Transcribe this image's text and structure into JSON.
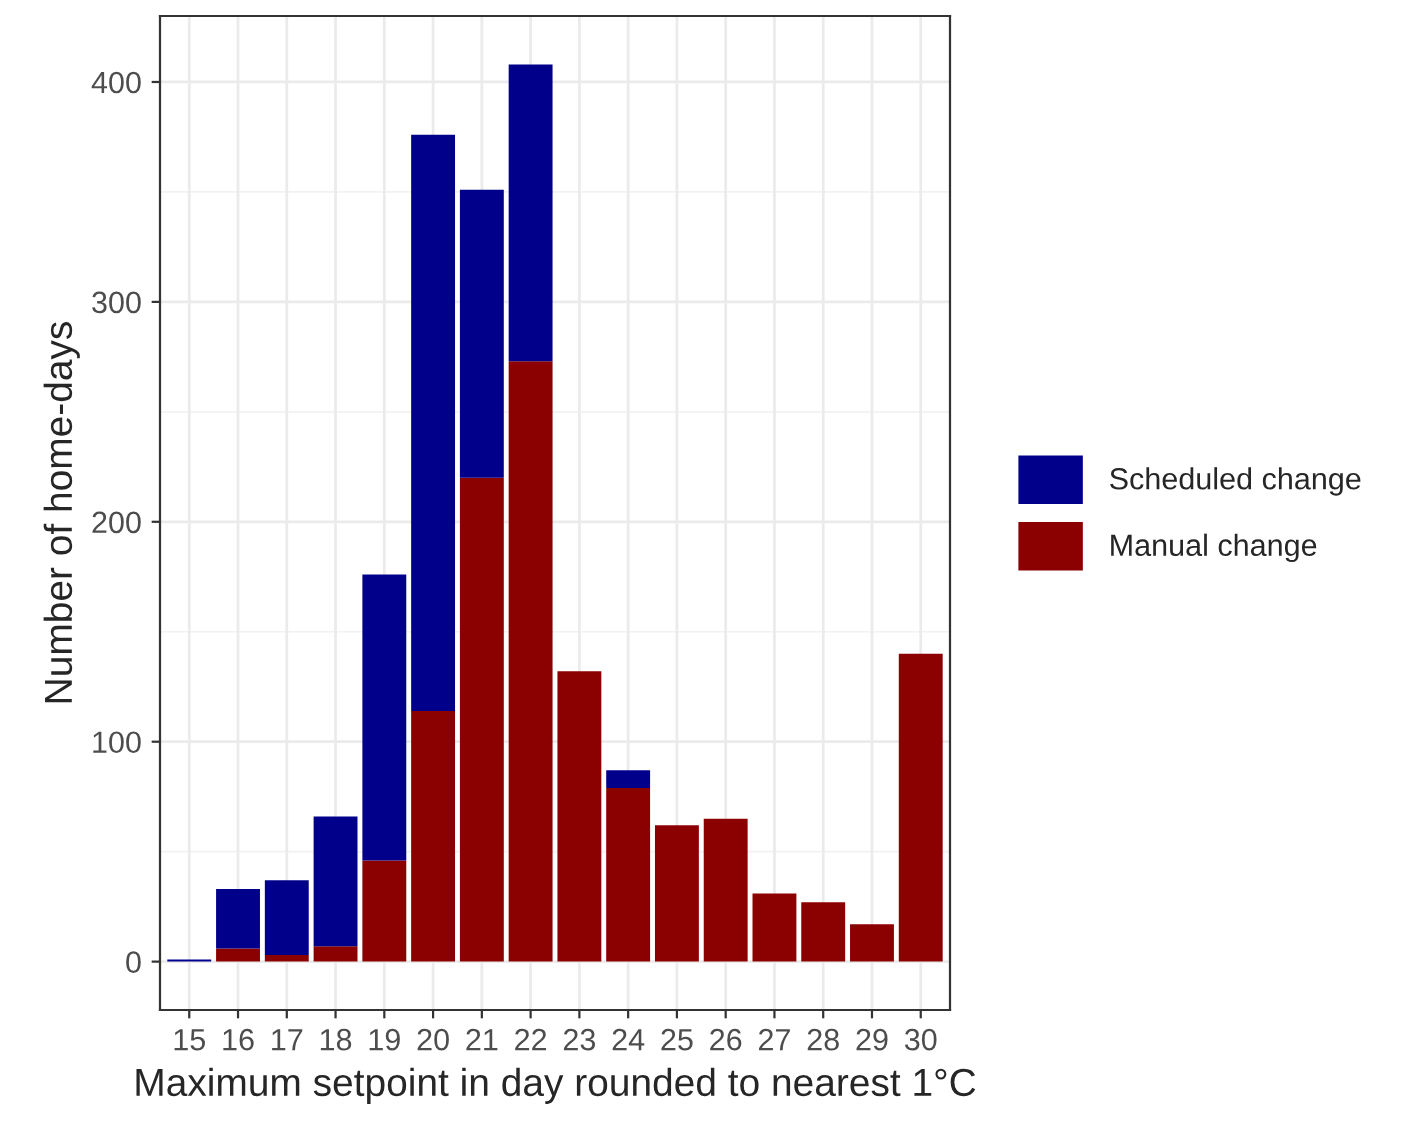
{
  "chart_data": {
    "type": "bar",
    "xlabel": "Maximum setpoint in day rounded to nearest 1°C",
    "ylabel": "Number of home-days",
    "categories": [
      "15",
      "16",
      "17",
      "18",
      "19",
      "20",
      "21",
      "22",
      "23",
      "24",
      "25",
      "26",
      "27",
      "28",
      "29",
      "30"
    ],
    "stacked": true,
    "series": [
      {
        "name": "Manual change",
        "color": "#8b0000",
        "values": [
          0,
          6,
          3,
          7,
          46,
          114,
          220,
          273,
          132,
          79,
          62,
          65,
          31,
          27,
          17,
          140
        ]
      },
      {
        "name": "Scheduled change",
        "color": "#00008b",
        "values": [
          1,
          27,
          34,
          59,
          130,
          262,
          131,
          135,
          0,
          8,
          0,
          0,
          0,
          0,
          0,
          0
        ]
      }
    ],
    "ylim": [
      -22,
      430
    ],
    "yticks": [
      0,
      100,
      200,
      300,
      400
    ],
    "grid": true,
    "legend": "right"
  }
}
